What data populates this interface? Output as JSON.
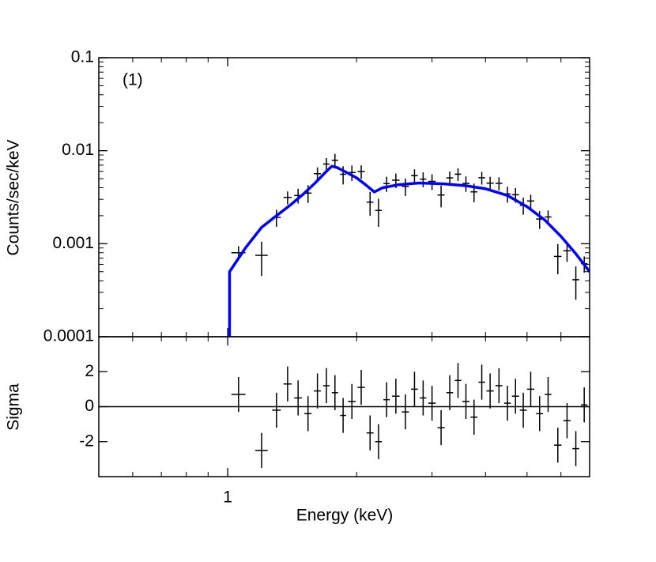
{
  "chart_data": [
    {
      "type": "spectrum",
      "annotation": "(1)",
      "ylabel": "Counts/sec/keV",
      "ylog": true,
      "xlim": [
        0.5,
        7
      ],
      "xticks": [
        1
      ],
      "xminorticks": [
        0.6,
        0.7,
        0.8,
        0.9,
        2,
        3,
        4,
        5,
        6,
        7
      ],
      "xlog": true,
      "ylim": [
        0.0001,
        0.1
      ],
      "yticks": [
        0.0001,
        0.001,
        0.01,
        0.1
      ],
      "points": {
        "color": "#000000",
        "x": [
          1.06,
          1.2,
          1.3,
          1.38,
          1.46,
          1.54,
          1.62,
          1.7,
          1.78,
          1.86,
          1.95,
          2.05,
          2.15,
          2.25,
          2.35,
          2.47,
          2.6,
          2.73,
          2.86,
          3.0,
          3.15,
          3.3,
          3.45,
          3.6,
          3.76,
          3.92,
          4.1,
          4.3,
          4.5,
          4.7,
          4.9,
          5.1,
          5.35,
          5.6,
          5.9,
          6.2,
          6.5,
          6.8
        ],
        "xerr": [
          0.04,
          0.04,
          0.03,
          0.03,
          0.03,
          0.03,
          0.03,
          0.03,
          0.03,
          0.03,
          0.04,
          0.04,
          0.04,
          0.04,
          0.04,
          0.05,
          0.05,
          0.05,
          0.05,
          0.06,
          0.06,
          0.06,
          0.06,
          0.07,
          0.07,
          0.07,
          0.08,
          0.08,
          0.08,
          0.09,
          0.09,
          0.1,
          0.1,
          0.1,
          0.12,
          0.12,
          0.12,
          0.12
        ],
        "values": [
          0.0008,
          0.00075,
          0.00192,
          0.00315,
          0.0033,
          0.0035,
          0.00566,
          0.00719,
          0.00789,
          0.00558,
          0.00583,
          0.00598,
          0.0028,
          0.00228,
          0.00443,
          0.00482,
          0.00414,
          0.0054,
          0.00495,
          0.00468,
          0.00334,
          0.0051,
          0.00559,
          0.00445,
          0.00361,
          0.00512,
          0.00448,
          0.00446,
          0.00343,
          0.00336,
          0.00259,
          0.00288,
          0.00184,
          0.00194,
          0.00073,
          0.00084,
          0.00041,
          0.00061
        ],
        "yerr": [
          0.00014,
          0.0003,
          0.0004,
          0.0005,
          0.0006,
          0.00076,
          0.00096,
          0.00116,
          0.00136,
          0.00124,
          0.0011,
          0.00098,
          0.0008,
          0.00076,
          0.00082,
          0.00086,
          0.00088,
          0.0009,
          0.0009,
          0.0009,
          0.00088,
          0.00088,
          0.00086,
          0.00084,
          0.00082,
          0.0008,
          0.00076,
          0.00072,
          0.00066,
          0.0006,
          0.00054,
          0.00048,
          0.0004,
          0.00034,
          0.00026,
          0.0002,
          0.00016,
          0.00012
        ]
      },
      "model": {
        "color": "#0000ff",
        "x": [
          1.01,
          1.01,
          1.1,
          1.2,
          1.3,
          1.4,
          1.5,
          1.6,
          1.7,
          1.75,
          1.8,
          1.9,
          2.0,
          2.1,
          2.2,
          2.3,
          2.5,
          2.8,
          3.2,
          3.6,
          4.0,
          4.5,
          5.0,
          5.5,
          6.0,
          6.5,
          7.0
        ],
        "values": [
          0.0001,
          0.0005,
          0.0009,
          0.0015,
          0.002,
          0.0026,
          0.0034,
          0.0045,
          0.006,
          0.0068,
          0.0066,
          0.0058,
          0.0051,
          0.0043,
          0.0036,
          0.004,
          0.0043,
          0.0045,
          0.0044,
          0.0042,
          0.0039,
          0.0033,
          0.0025,
          0.0018,
          0.0012,
          0.00078,
          0.0005
        ]
      }
    },
    {
      "type": "residual",
      "ylabel": "Sigma",
      "xlabel": "Energy (keV)",
      "ylog": false,
      "xlim": [
        0.5,
        7
      ],
      "xticks": [
        1
      ],
      "xminorticks": [
        0.6,
        0.7,
        0.8,
        0.9,
        2,
        3,
        4,
        5,
        6,
        7
      ],
      "xlog": true,
      "ylim": [
        -4,
        4
      ],
      "yticks": [
        -2,
        0,
        2
      ],
      "zero_line": 0,
      "points": {
        "color": "#000000",
        "x": [
          1.06,
          1.2,
          1.3,
          1.38,
          1.46,
          1.54,
          1.62,
          1.7,
          1.78,
          1.86,
          1.95,
          2.05,
          2.15,
          2.25,
          2.35,
          2.47,
          2.6,
          2.73,
          2.86,
          3.0,
          3.15,
          3.3,
          3.45,
          3.6,
          3.76,
          3.92,
          4.1,
          4.3,
          4.5,
          4.7,
          4.9,
          5.1,
          5.35,
          5.6,
          5.9,
          6.2,
          6.5,
          6.8
        ],
        "xerr": [
          0.04,
          0.04,
          0.03,
          0.03,
          0.03,
          0.03,
          0.03,
          0.03,
          0.03,
          0.03,
          0.04,
          0.04,
          0.04,
          0.04,
          0.04,
          0.05,
          0.05,
          0.05,
          0.05,
          0.06,
          0.06,
          0.06,
          0.06,
          0.07,
          0.07,
          0.07,
          0.08,
          0.08,
          0.08,
          0.09,
          0.09,
          0.1,
          0.1,
          0.1,
          0.12,
          0.12,
          0.12,
          0.12
        ],
        "values": [
          0.7,
          -2.5,
          -0.2,
          1.3,
          0.5,
          -0.4,
          0.9,
          1.2,
          0.8,
          -0.5,
          0.3,
          1.1,
          -1.5,
          -2.0,
          0.4,
          0.6,
          -0.3,
          1.0,
          0.5,
          0.2,
          -1.2,
          0.8,
          1.5,
          0.3,
          -0.6,
          1.4,
          0.9,
          1.2,
          0.2,
          0.6,
          -0.2,
          1.0,
          -0.4,
          0.7,
          -2.2,
          -0.8,
          -2.4,
          0.1
        ],
        "yerr": [
          1,
          1,
          1,
          1,
          1,
          1,
          1,
          1,
          1,
          1,
          1,
          1,
          1,
          1,
          1,
          1,
          1,
          1,
          1,
          1,
          1,
          1,
          1,
          1,
          1,
          1,
          1,
          1,
          1,
          1,
          1,
          1,
          1,
          1,
          1,
          1,
          1,
          1
        ]
      }
    }
  ]
}
